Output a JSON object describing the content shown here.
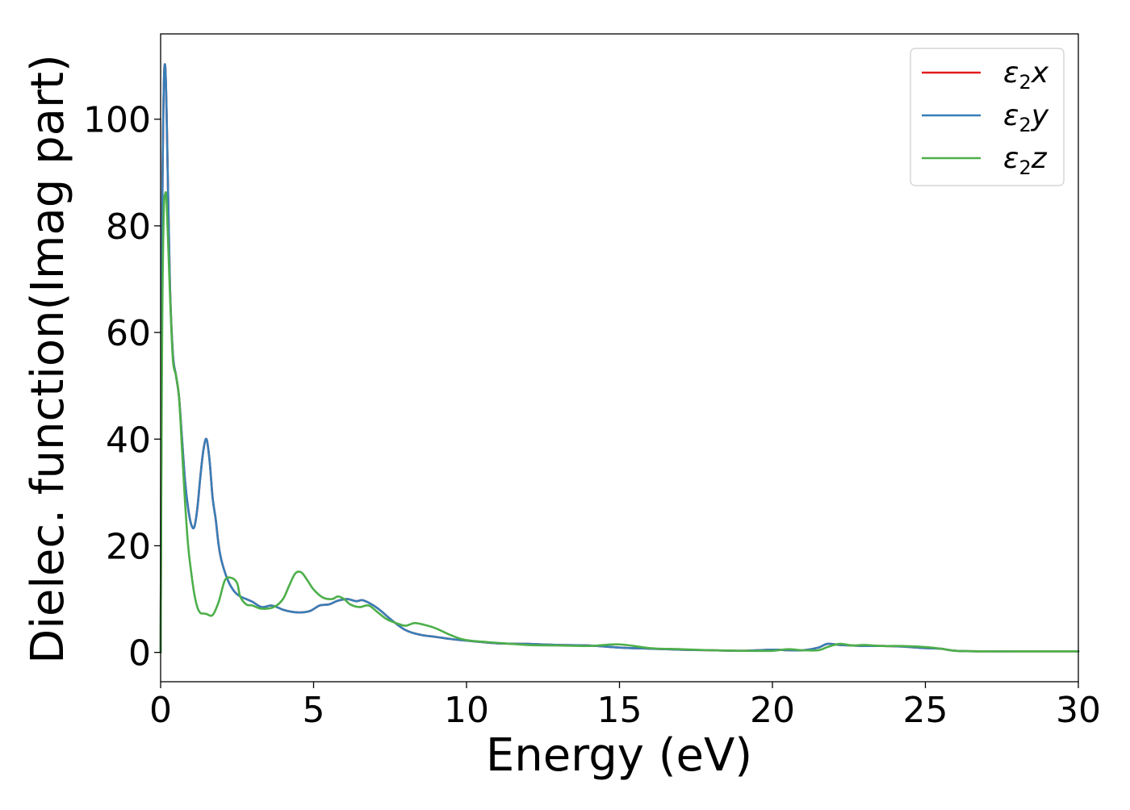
{
  "chart_data": {
    "type": "line",
    "title": "",
    "xlabel": "Energy (eV)",
    "ylabel": "Dielec. function(Imag part)",
    "xlim": [
      0,
      30
    ],
    "ylim": [
      -5.5,
      116
    ],
    "xticks": [
      "0",
      "5",
      "10",
      "15",
      "20",
      "25",
      "30"
    ],
    "yticks": [
      "0",
      "20",
      "40",
      "60",
      "80",
      "100"
    ],
    "grid": false,
    "legend_position": "top-right",
    "series": [
      {
        "name": "ε2x",
        "legend_main": "ε",
        "legend_sub": "2",
        "legend_var": "x",
        "color": "#e41a1c",
        "x": [
          0,
          0.05,
          0.1,
          0.15,
          0.2,
          0.3,
          0.4,
          0.5,
          0.6,
          0.7,
          0.8,
          0.9,
          1.0,
          1.1,
          1.2,
          1.3,
          1.4,
          1.5,
          1.6,
          1.7,
          1.8,
          1.9,
          2.0,
          2.2,
          2.4,
          2.6,
          2.8,
          3.0,
          3.3,
          3.6,
          3.8,
          4.0,
          4.3,
          4.6,
          4.9,
          5.2,
          5.5,
          5.8,
          6.1,
          6.4,
          6.6,
          6.9,
          7.2,
          7.5,
          8.0,
          8.5,
          9.0,
          9.5,
          10.0,
          11.0,
          12.0,
          13.0,
          14.0,
          15.0,
          16.0,
          17.0,
          18.0,
          19.0,
          20.0,
          20.5,
          21.0,
          21.5,
          21.8,
          22.2,
          22.6,
          23.0,
          23.6,
          24.2,
          25.0,
          25.5,
          26.0,
          27.0,
          28.0,
          29.0,
          30.0
        ],
        "values": [
          0,
          78,
          105,
          110,
          100,
          70,
          56,
          52,
          48,
          40,
          32,
          27,
          24,
          23.5,
          27,
          33,
          38,
          40,
          36,
          29,
          25,
          20,
          17,
          13.5,
          11.5,
          10.5,
          10,
          9.5,
          8.5,
          8.8,
          8.5,
          8.0,
          7.6,
          7.5,
          7.8,
          8.8,
          9.0,
          9.7,
          10.0,
          9.6,
          9.8,
          9.0,
          7.8,
          6.3,
          4.2,
          3.3,
          2.9,
          2.5,
          2.2,
          1.7,
          1.6,
          1.4,
          1.3,
          0.9,
          0.7,
          0.5,
          0.4,
          0.3,
          0.5,
          0.4,
          0.4,
          0.9,
          1.6,
          1.4,
          1.3,
          1.2,
          1.2,
          1.1,
          0.8,
          0.7,
          0.3,
          0.2,
          0.2,
          0.2,
          0.2
        ]
      },
      {
        "name": "ε2y",
        "legend_main": "ε",
        "legend_sub": "2",
        "legend_var": "y",
        "color": "#377eb8",
        "x": [
          0,
          0.05,
          0.1,
          0.15,
          0.2,
          0.3,
          0.4,
          0.5,
          0.6,
          0.7,
          0.8,
          0.9,
          1.0,
          1.1,
          1.2,
          1.3,
          1.4,
          1.5,
          1.6,
          1.7,
          1.8,
          1.9,
          2.0,
          2.2,
          2.4,
          2.6,
          2.8,
          3.0,
          3.3,
          3.6,
          3.8,
          4.0,
          4.3,
          4.6,
          4.9,
          5.2,
          5.5,
          5.8,
          6.1,
          6.4,
          6.6,
          6.9,
          7.2,
          7.5,
          8.0,
          8.5,
          9.0,
          9.5,
          10.0,
          11.0,
          12.0,
          13.0,
          14.0,
          15.0,
          16.0,
          17.0,
          18.0,
          19.0,
          20.0,
          20.5,
          21.0,
          21.5,
          21.8,
          22.2,
          22.6,
          23.0,
          23.6,
          24.2,
          25.0,
          25.5,
          26.0,
          27.0,
          28.0,
          29.0,
          30.0
        ],
        "values": [
          0,
          78,
          105,
          110,
          100,
          70,
          56,
          52,
          48,
          40,
          32,
          27,
          24,
          23.5,
          27,
          33,
          38,
          40,
          36,
          29,
          25,
          20,
          17,
          13.5,
          11.5,
          10.5,
          10,
          9.5,
          8.5,
          8.8,
          8.5,
          8.0,
          7.6,
          7.5,
          7.8,
          8.8,
          9.0,
          9.7,
          10.0,
          9.6,
          9.8,
          9.0,
          7.8,
          6.3,
          4.2,
          3.3,
          2.9,
          2.5,
          2.2,
          1.7,
          1.6,
          1.4,
          1.3,
          0.9,
          0.7,
          0.5,
          0.4,
          0.3,
          0.5,
          0.4,
          0.4,
          0.9,
          1.6,
          1.4,
          1.3,
          1.2,
          1.2,
          1.1,
          0.8,
          0.7,
          0.3,
          0.2,
          0.2,
          0.2,
          0.2
        ]
      },
      {
        "name": "ε2z",
        "legend_main": "ε",
        "legend_sub": "2",
        "legend_var": "z",
        "color": "#4daf4a",
        "x": [
          0,
          0.05,
          0.1,
          0.15,
          0.2,
          0.3,
          0.4,
          0.5,
          0.6,
          0.7,
          0.8,
          0.9,
          1.0,
          1.1,
          1.2,
          1.3,
          1.4,
          1.5,
          1.7,
          1.9,
          2.1,
          2.3,
          2.5,
          2.6,
          2.8,
          3.0,
          3.3,
          3.7,
          4.0,
          4.2,
          4.4,
          4.6,
          4.8,
          5.0,
          5.3,
          5.6,
          5.8,
          6.0,
          6.2,
          6.5,
          6.8,
          7.1,
          7.4,
          7.7,
          8.0,
          8.3,
          8.6,
          9.0,
          9.5,
          10.0,
          11.0,
          12.0,
          13.0,
          14.0,
          15.0,
          16.0,
          17.0,
          18.0,
          19.0,
          20.0,
          20.5,
          21.0,
          21.5,
          21.8,
          22.2,
          22.6,
          23.0,
          23.6,
          24.2,
          25.0,
          25.5,
          26.0,
          27.0,
          28.0,
          29.0,
          30.0
        ],
        "values": [
          0,
          60,
          82,
          86,
          84,
          68,
          55,
          52,
          48,
          38,
          28,
          20,
          15,
          11,
          8.5,
          7.4,
          7.3,
          7.2,
          7.0,
          9.5,
          13.5,
          14.0,
          13.0,
          10.5,
          9.0,
          8.8,
          8.2,
          8.5,
          10.0,
          12.5,
          14.8,
          15.0,
          13.5,
          11.8,
          10.3,
          10.0,
          10.5,
          10.0,
          9.0,
          8.5,
          8.8,
          7.5,
          6.2,
          5.5,
          5.0,
          5.5,
          5.2,
          4.5,
          3.2,
          2.3,
          1.8,
          1.4,
          1.3,
          1.2,
          1.5,
          0.8,
          0.6,
          0.4,
          0.3,
          0.3,
          0.6,
          0.4,
          0.4,
          1.0,
          1.6,
          1.3,
          1.4,
          1.2,
          1.2,
          1.0,
          0.7,
          0.3,
          0.2,
          0.2,
          0.2,
          0.2
        ]
      }
    ]
  }
}
